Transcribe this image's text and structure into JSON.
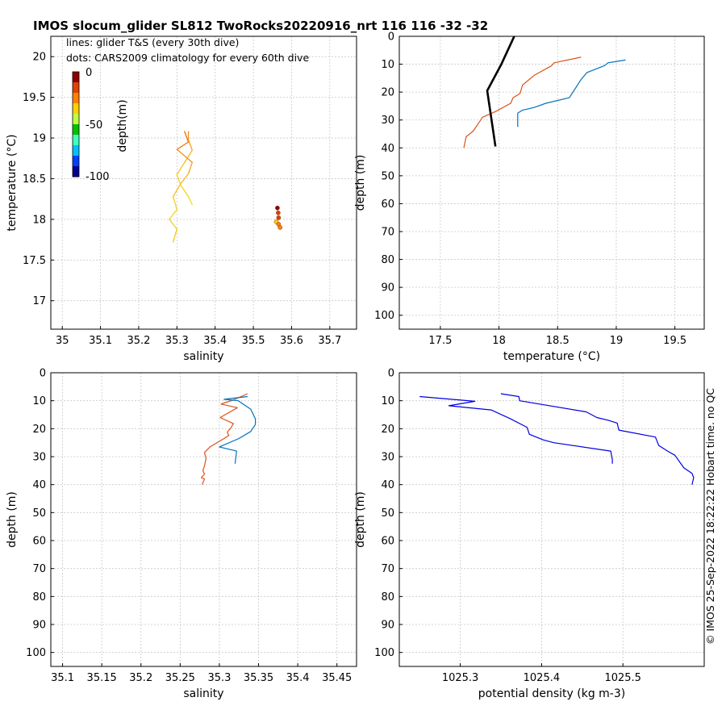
{
  "title": "IMOS slocum_glider SL812 TwoRocks20220916_nrt 116  116  -32  -32",
  "credit": "© IMOS 25-Sep-2022 18:22:22 Hobart time. no QC",
  "colors": {
    "glider_depth_cmap": [
      "#00008f",
      "#0040ff",
      "#00c0ff",
      "#40ffbf",
      "#00c000",
      "#c0ff40",
      "#ffd000",
      "#ff8000",
      "#e04000",
      "#8f0000"
    ],
    "series_orange": "#d95319",
    "series_blue": "#0072bd",
    "climatology_line": "#000000",
    "density_line": "#0000e0",
    "grid": "#c8c8c8"
  },
  "chart_data": [
    {
      "type": "line",
      "panel": "top-left",
      "xlabel": "salinity",
      "ylabel": "temperature (°C)",
      "xlim": [
        34.97,
        35.77
      ],
      "ylim": [
        16.65,
        20.25
      ],
      "xticks": [
        "35",
        "35.1",
        "35.2",
        "35.3",
        "35.4",
        "35.5",
        "35.6",
        "35.7"
      ],
      "yticks": [
        "17",
        "17.5",
        "18",
        "18.5",
        "19",
        "19.5",
        "20"
      ],
      "annotations": [
        "lines: glider T&S (every 30th dive)",
        "dots: CARS2009 climatology for every 60th dive"
      ],
      "colorbar": {
        "label": "depth(m)",
        "ticks": [
          "0",
          "-50",
          "-100"
        ],
        "range": [
          -100,
          0
        ]
      },
      "series": [
        {
          "x": [
            35.32,
            35.33,
            35.3,
            35.34,
            35.33,
            35.31,
            35.29,
            35.3,
            35.28,
            35.3,
            35.29
          ],
          "y": [
            19.08,
            18.95,
            18.86,
            18.7,
            18.56,
            18.44,
            18.28,
            18.12,
            18.0,
            17.88,
            17.72
          ],
          "colors": [
            "#e86a10",
            "#ee7e10",
            "#f29018",
            "#f6a020",
            "#f7b020",
            "#f8c020",
            "#f7cc20",
            "#f4d420",
            "#f2d020",
            "#f0c820",
            "#eec020"
          ]
        },
        {
          "x": [
            35.33,
            35.33,
            35.34,
            35.32,
            35.3,
            35.31,
            35.33,
            35.34
          ],
          "y": [
            19.08,
            18.98,
            18.85,
            18.7,
            18.55,
            18.42,
            18.28,
            18.18
          ],
          "colors": [
            "#f29018",
            "#f4a020",
            "#f6b020",
            "#f7c020",
            "#f7cc20",
            "#f4d420",
            "#f2d820",
            "#f0dc20"
          ]
        }
      ],
      "points": [
        {
          "x": 35.563,
          "y": 18.14,
          "depth": -5
        },
        {
          "x": 35.565,
          "y": 18.08,
          "depth": -10
        },
        {
          "x": 35.566,
          "y": 18.02,
          "depth": -15
        },
        {
          "x": 35.56,
          "y": 17.97,
          "depth": -30
        },
        {
          "x": 35.566,
          "y": 17.94,
          "depth": -25
        },
        {
          "x": 35.57,
          "y": 17.9,
          "depth": -20
        }
      ]
    },
    {
      "type": "line",
      "panel": "top-right",
      "xlabel": "temperature (°C)",
      "ylabel": "depth (m)",
      "xlim": [
        17.15,
        19.75
      ],
      "ylim": [
        105,
        0
      ],
      "xticks": [
        "17.5",
        "18",
        "18.5",
        "19",
        "19.5"
      ],
      "yticks": [
        "0",
        "10",
        "20",
        "30",
        "40",
        "50",
        "60",
        "70",
        "80",
        "90",
        "100"
      ],
      "series": [
        {
          "color": "orange",
          "x": [
            18.7,
            18.47,
            18.45,
            18.3,
            18.2,
            18.18,
            18.12,
            18.1,
            17.97,
            17.86,
            17.78,
            17.72,
            17.71,
            17.7
          ],
          "y": [
            7.5,
            9.5,
            10.5,
            14,
            17.5,
            20.5,
            22,
            24,
            27,
            29,
            34,
            36,
            38,
            40
          ]
        },
        {
          "color": "blue",
          "x": [
            19.08,
            18.93,
            18.9,
            18.75,
            18.7,
            18.6,
            18.4,
            18.3,
            18.2,
            18.16,
            18.16
          ],
          "y": [
            8.5,
            9.5,
            10.5,
            13,
            15.5,
            22,
            24,
            25.5,
            26.5,
            27.5,
            32.5
          ]
        },
        {
          "color": "black",
          "x": [
            18.13,
            18.02,
            17.9,
            17.97
          ],
          "y": [
            0,
            10,
            19.5,
            39.5
          ]
        }
      ]
    },
    {
      "type": "line",
      "panel": "bottom-left",
      "xlabel": "salinity",
      "ylabel": "depth (m)",
      "xlim": [
        35.085,
        35.475
      ],
      "ylim": [
        105,
        0
      ],
      "xticks": [
        "35.1",
        "35.15",
        "35.2",
        "35.25",
        "35.3",
        "35.35",
        "35.4",
        "35.45"
      ],
      "yticks": [
        "0",
        "10",
        "20",
        "30",
        "40",
        "50",
        "60",
        "70",
        "80",
        "90",
        "100"
      ],
      "series": [
        {
          "color": "orange",
          "x": [
            35.336,
            35.317,
            35.302,
            35.323,
            35.301,
            35.318,
            35.314,
            35.31,
            35.312,
            35.306,
            35.288,
            35.281,
            35.283,
            35.281,
            35.279,
            35.281,
            35.277,
            35.281,
            35.278
          ],
          "y": [
            7.5,
            9.8,
            11.2,
            12.5,
            16.0,
            18.2,
            20.0,
            21.2,
            22.4,
            23.5,
            26.5,
            28.5,
            30.6,
            33.3,
            35.0,
            36.2,
            37.5,
            38.0,
            40.0
          ]
        },
        {
          "color": "blue",
          "x": [
            35.336,
            35.306,
            35.324,
            35.34,
            35.346,
            35.346,
            35.34,
            35.325,
            35.3,
            35.322,
            35.32
          ],
          "y": [
            8.5,
            9.5,
            10.0,
            13.0,
            16.5,
            18.5,
            21.0,
            23.5,
            26.5,
            28.0,
            32.5
          ]
        }
      ]
    },
    {
      "type": "line",
      "panel": "bottom-right",
      "xlabel": "potential density (kg m-3)",
      "ylabel": "depth (m)",
      "xlim": [
        1025.225,
        1025.6
      ],
      "ylim": [
        105,
        0
      ],
      "xticks": [
        "1025.3",
        "1025.4",
        "1025.5"
      ],
      "yticks": [
        "0",
        "10",
        "20",
        "30",
        "40",
        "50",
        "60",
        "70",
        "80",
        "90",
        "100"
      ],
      "series": [
        {
          "color": "density",
          "x": [
            1025.25,
            1025.318,
            1025.286,
            1025.338,
            1025.362,
            1025.382,
            1025.385,
            1025.402,
            1025.415,
            1025.485,
            1025.487,
            1025.487
          ],
          "y": [
            8.5,
            10.2,
            11.8,
            13.3,
            16.5,
            19.5,
            22.0,
            24.0,
            25.0,
            28.0,
            31.0,
            32.5
          ]
        },
        {
          "color": "density",
          "x": [
            1025.35,
            1025.372,
            1025.373,
            1025.455,
            1025.468,
            1025.482,
            1025.493,
            1025.495,
            1025.54,
            1025.544,
            1025.555,
            1025.564,
            1025.575,
            1025.585,
            1025.587,
            1025.585
          ],
          "y": [
            7.5,
            8.5,
            10.0,
            14.0,
            16.0,
            17.0,
            18.0,
            20.5,
            23.0,
            26.0,
            28.0,
            29.5,
            34.0,
            36.0,
            37.5,
            40.0
          ]
        }
      ]
    }
  ]
}
